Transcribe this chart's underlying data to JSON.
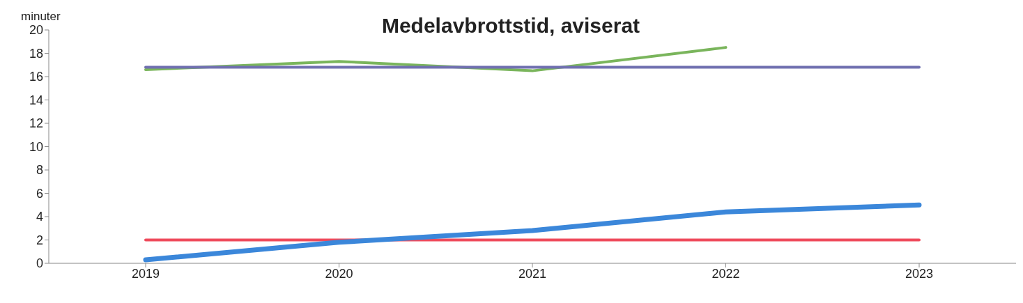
{
  "chart_data": {
    "type": "line",
    "title": "Medelavbrottstid, aviserat",
    "ylabel": "minuter",
    "categories": [
      "2019",
      "2020",
      "2021",
      "2022",
      "2023"
    ],
    "series": [
      {
        "color": "#7ab55c",
        "values": [
          16.6,
          17.3,
          16.5,
          18.5,
          null
        ]
      },
      {
        "color": "#7070b0",
        "values": [
          16.8,
          16.8,
          16.8,
          16.8,
          16.8
        ]
      },
      {
        "color": "#ef4b5c",
        "values": [
          2,
          2,
          2,
          2,
          2
        ]
      },
      {
        "color": "#3b87da",
        "values": [
          0.3,
          1.8,
          2.8,
          4.4,
          5.0
        ]
      }
    ],
    "ylim": [
      0,
      20
    ],
    "yticks": [
      0,
      2,
      4,
      6,
      8,
      10,
      12,
      14,
      16,
      18,
      20
    ],
    "grid": false,
    "legend": false,
    "marker": "none",
    "line_style": "solid"
  }
}
